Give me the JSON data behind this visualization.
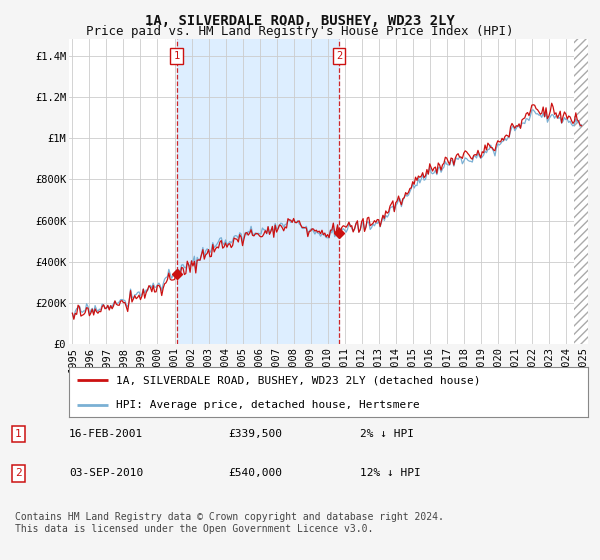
{
  "title": "1A, SILVERDALE ROAD, BUSHEY, WD23 2LY",
  "subtitle": "Price paid vs. HM Land Registry's House Price Index (HPI)",
  "ylabel_ticks": [
    "£0",
    "£200K",
    "£400K",
    "£600K",
    "£800K",
    "£1M",
    "£1.2M",
    "£1.4M"
  ],
  "ytick_values": [
    0,
    200000,
    400000,
    600000,
    800000,
    1000000,
    1200000,
    1400000
  ],
  "ylim": [
    0,
    1480000
  ],
  "xlim_start": 1994.8,
  "xlim_end": 2025.3,
  "background_color": "#f5f5f5",
  "plot_background": "#ffffff",
  "grid_color": "#cccccc",
  "hpi_color": "#7ab0d4",
  "price_color": "#cc1111",
  "shade_color": "#ddeeff",
  "marker1_x": 2001.12,
  "marker1_y": 339500,
  "marker2_x": 2010.67,
  "marker2_y": 540000,
  "legend_entry1": "1A, SILVERDALE ROAD, BUSHEY, WD23 2LY (detached house)",
  "legend_entry2": "HPI: Average price, detached house, Hertsmere",
  "annotation1_date": "16-FEB-2001",
  "annotation1_price": "£339,500",
  "annotation1_hpi": "2% ↓ HPI",
  "annotation2_date": "03-SEP-2010",
  "annotation2_price": "£540,000",
  "annotation2_hpi": "12% ↓ HPI",
  "footer": "Contains HM Land Registry data © Crown copyright and database right 2024.\nThis data is licensed under the Open Government Licence v3.0.",
  "title_fontsize": 10,
  "subtitle_fontsize": 9,
  "tick_fontsize": 7.5,
  "legend_fontsize": 8,
  "annotation_fontsize": 8,
  "footer_fontsize": 7
}
